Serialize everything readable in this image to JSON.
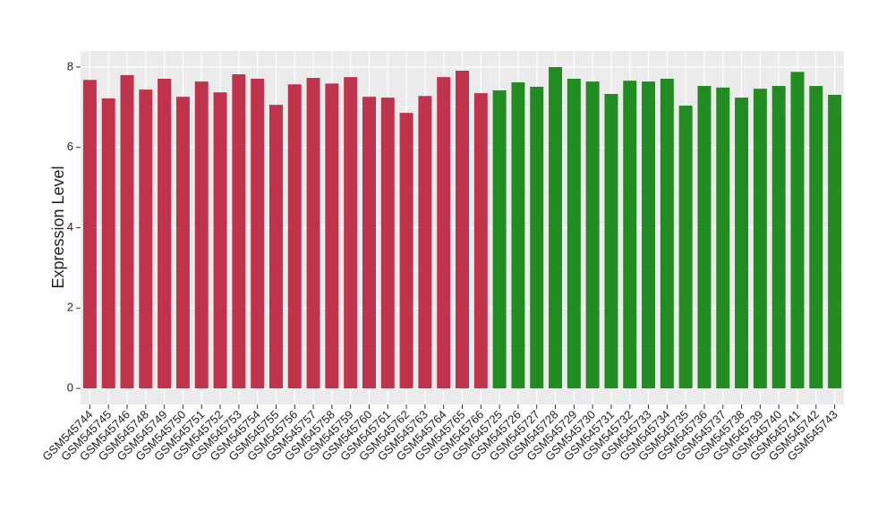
{
  "chart_data": {
    "type": "bar",
    "y_label": "Expression Level",
    "categories": [
      "GSM545744",
      "GSM545745",
      "GSM545746",
      "GSM545748",
      "GSM545749",
      "GSM545750",
      "GSM545751",
      "GSM545752",
      "GSM545753",
      "GSM545754",
      "GSM545755",
      "GSM545756",
      "GSM545757",
      "GSM545758",
      "GSM545759",
      "GSM545760",
      "GSM545761",
      "GSM545762",
      "GSM545763",
      "GSM545764",
      "GSM545765",
      "GSM545766",
      "GSM545725",
      "GSM545726",
      "GSM545727",
      "GSM545728",
      "GSM545729",
      "GSM545730",
      "GSM545731",
      "GSM545732",
      "GSM545733",
      "GSM545734",
      "GSM545735",
      "GSM545736",
      "GSM545737",
      "GSM545738",
      "GSM545739",
      "GSM545740",
      "GSM545741",
      "GSM545742",
      "GSM545743"
    ],
    "values": [
      7.68,
      7.22,
      7.8,
      7.44,
      7.71,
      7.26,
      7.64,
      7.37,
      7.82,
      7.71,
      7.06,
      7.57,
      7.73,
      7.59,
      7.75,
      7.26,
      7.24,
      6.86,
      7.28,
      7.75,
      7.91,
      7.35,
      7.42,
      7.62,
      7.51,
      8.0,
      7.71,
      7.64,
      7.33,
      7.66,
      7.64,
      7.71,
      7.04,
      7.53,
      7.49,
      7.24,
      7.46,
      7.53,
      7.88,
      7.53,
      7.31
    ],
    "colors": [
      "#c0334d",
      "#c0334d",
      "#c0334d",
      "#c0334d",
      "#c0334d",
      "#c0334d",
      "#c0334d",
      "#c0334d",
      "#c0334d",
      "#c0334d",
      "#c0334d",
      "#c0334d",
      "#c0334d",
      "#c0334d",
      "#c0334d",
      "#c0334d",
      "#c0334d",
      "#c0334d",
      "#c0334d",
      "#c0334d",
      "#c0334d",
      "#c0334d",
      "#228b22",
      "#228b22",
      "#228b22",
      "#228b22",
      "#228b22",
      "#228b22",
      "#228b22",
      "#228b22",
      "#228b22",
      "#228b22",
      "#228b22",
      "#228b22",
      "#228b22",
      "#228b22",
      "#228b22",
      "#228b22",
      "#228b22",
      "#228b22",
      "#228b22"
    ],
    "ylim": [
      -0.4,
      8.4
    ],
    "yticks": [
      0,
      2,
      4,
      6,
      8
    ],
    "grid": true
  }
}
